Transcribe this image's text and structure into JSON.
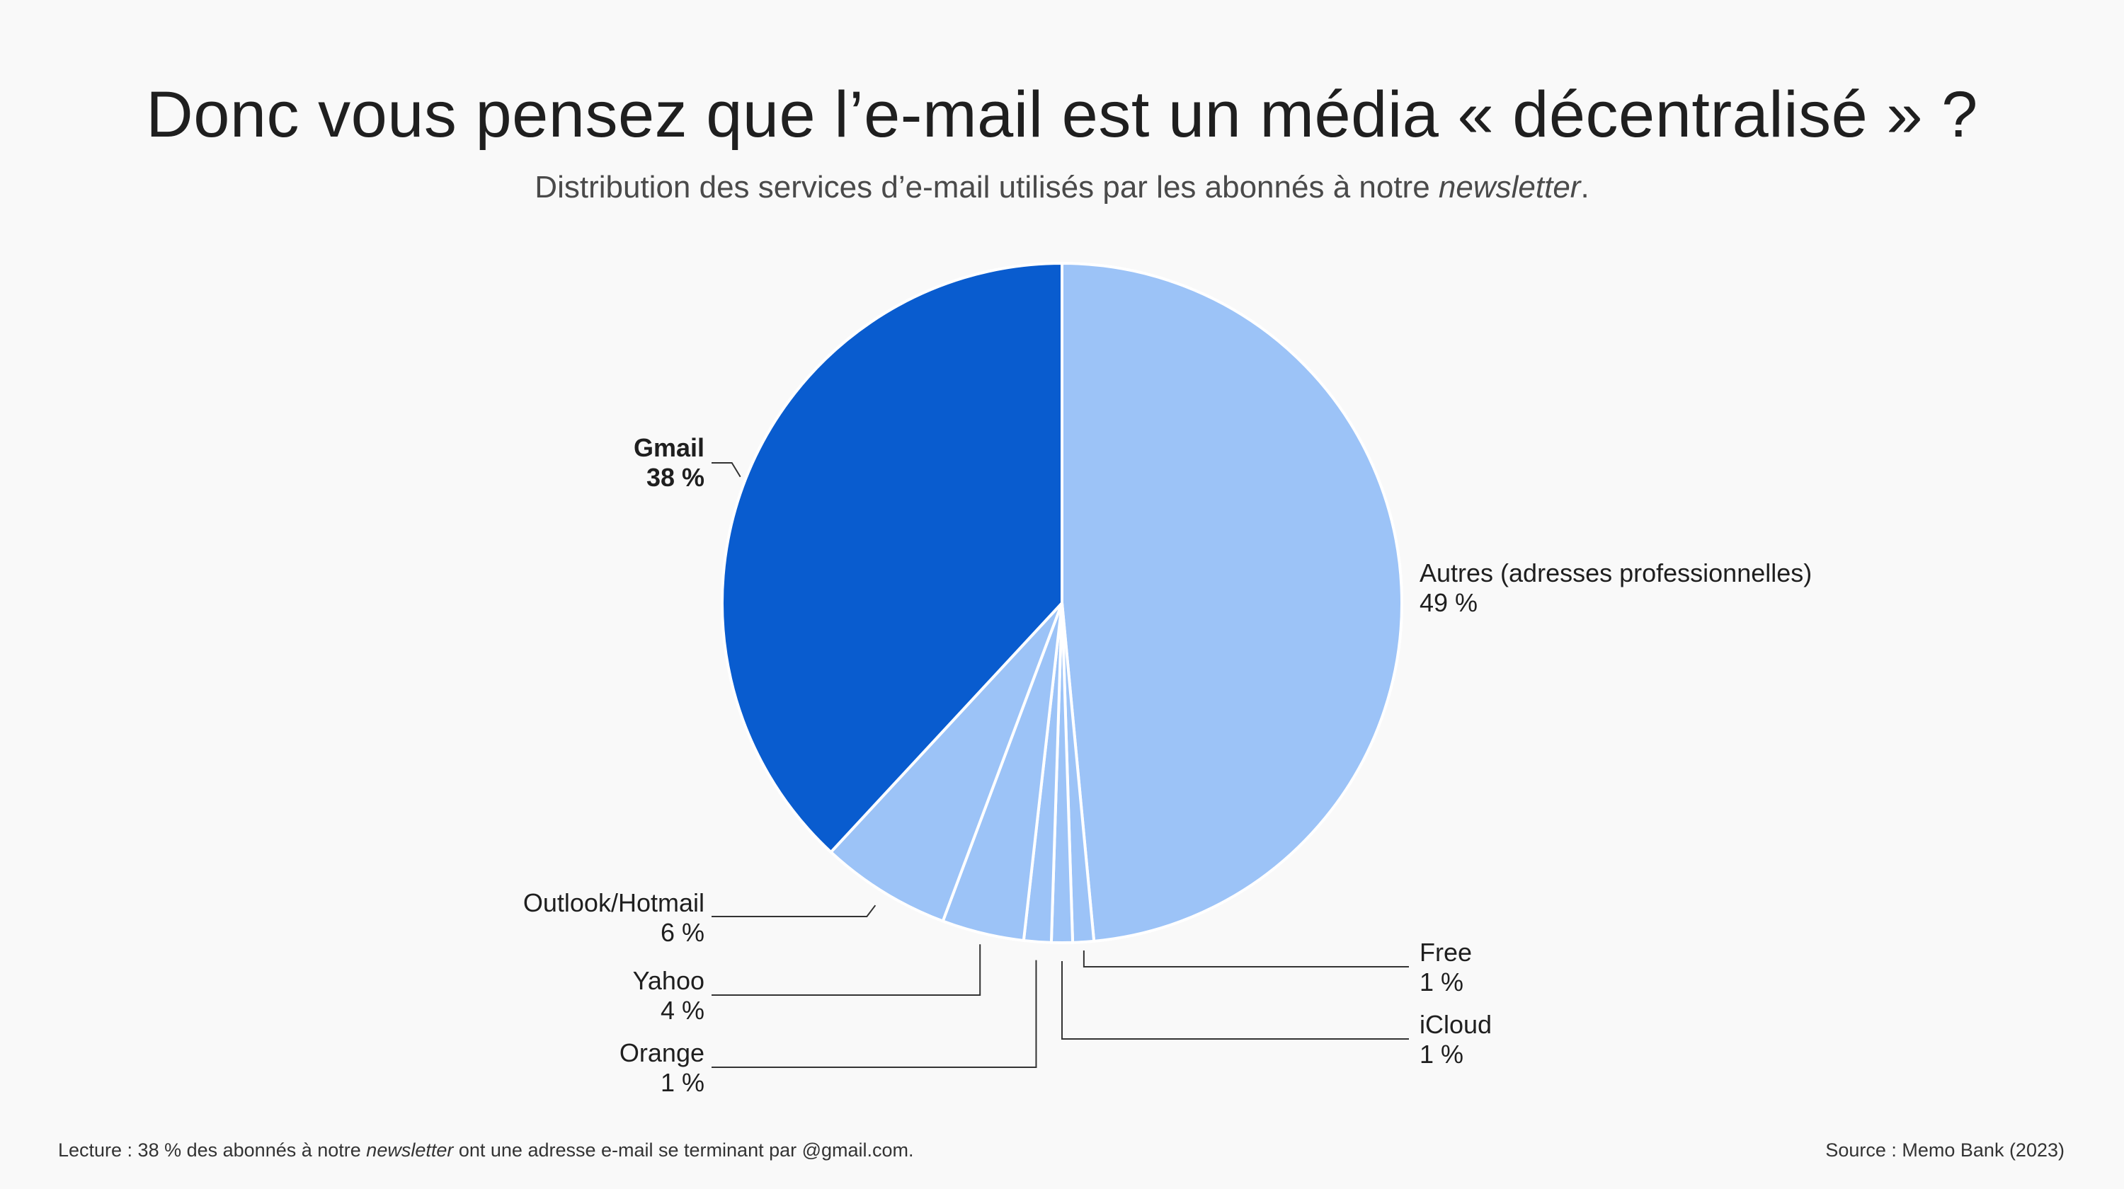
{
  "title": "Donc vous pensez que l’e-mail est un média « décentralisé » ?",
  "subtitle": {
    "before": "Distribution des services d’e-mail utilisés par les abonnés à notre ",
    "emph": "newsletter",
    "after": "."
  },
  "footnote": {
    "before": "Lecture : 38 % des abonnés à notre ",
    "emph": "newsletter",
    "after": " ont une adresse e-mail se terminant par @gmail.com."
  },
  "source": "Source : Memo Bank (2023)",
  "colors": {
    "highlight": "#095ccf",
    "other": "#9cc3f7",
    "background": "#f9f9f9",
    "separator": "#ffffff"
  },
  "chart_data": {
    "type": "pie",
    "start": "12 o'clock",
    "direction": "clockwise",
    "slices": [
      {
        "name": "Autres (adresses professionnelles)",
        "value": 48.5,
        "label": "49 %",
        "highlight": false
      },
      {
        "name": "Free",
        "value": 1.0,
        "label": "1 %",
        "highlight": false
      },
      {
        "name": "iCloud",
        "value": 1.0,
        "label": "1 %",
        "highlight": false
      },
      {
        "name": "Orange",
        "value": 1.3,
        "label": "1 %",
        "highlight": false
      },
      {
        "name": "Yahoo",
        "value": 3.9,
        "label": "4 %",
        "highlight": false
      },
      {
        "name": "Outlook/Hotmail",
        "value": 6.2,
        "label": "6 %",
        "highlight": false
      },
      {
        "name": "Gmail",
        "value": 38.1,
        "label": "38 %",
        "highlight": true
      }
    ]
  }
}
